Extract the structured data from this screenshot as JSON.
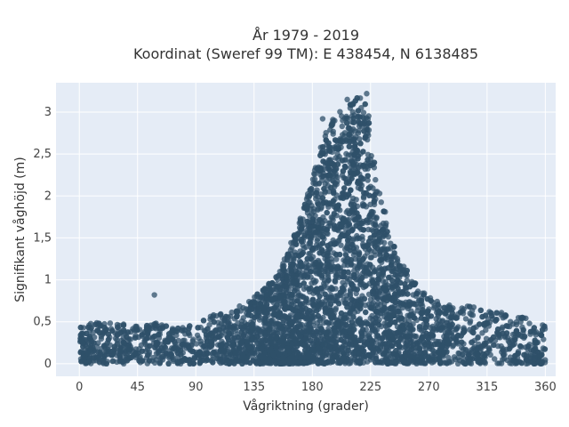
{
  "chart_data": {
    "type": "scatter",
    "title_line1": "År 1979 - 2019",
    "title_line2": "Koordinat (Sweref 99 TM): E 438454, N 6138485",
    "xlabel": "Vågriktning (grader)",
    "ylabel": "Signifikant våghöjd (m)",
    "xlim": [
      -18,
      368
    ],
    "ylim": [
      -0.15,
      3.35
    ],
    "x_ticks": [
      0,
      45,
      90,
      135,
      180,
      225,
      270,
      315,
      360
    ],
    "y_ticks": [
      0,
      0.5,
      1,
      1.5,
      2,
      2.5,
      3
    ],
    "y_tick_labels": [
      "0",
      "0,5",
      "1",
      "1,5",
      "2",
      "2,5",
      "3"
    ],
    "grid": true,
    "plot_background": "#e5ecf6",
    "marker_color": "#2f5069",
    "envelope": {
      "description": "upper envelope of the dense point cloud (direction, max height)",
      "x": [
        0,
        15,
        30,
        45,
        60,
        75,
        90,
        105,
        120,
        135,
        150,
        160,
        170,
        180,
        190,
        200,
        210,
        215,
        220,
        225,
        230,
        240,
        250,
        260,
        270,
        285,
        300,
        315,
        330,
        345,
        360
      ],
      "y": [
        0.45,
        0.5,
        0.5,
        0.45,
        0.5,
        0.45,
        0.5,
        0.6,
        0.65,
        0.8,
        1.0,
        1.3,
        1.7,
        2.2,
        2.8,
        3.0,
        3.1,
        3.2,
        3.15,
        2.9,
        2.2,
        1.6,
        1.2,
        0.95,
        0.8,
        0.7,
        0.7,
        0.65,
        0.6,
        0.55,
        0.45
      ]
    },
    "highlighted_points": [
      {
        "x": 58,
        "y": 0.82
      },
      {
        "x": 207,
        "y": 3.15
      },
      {
        "x": 222,
        "y": 3.22
      },
      {
        "x": 188,
        "y": 2.92
      }
    ]
  }
}
